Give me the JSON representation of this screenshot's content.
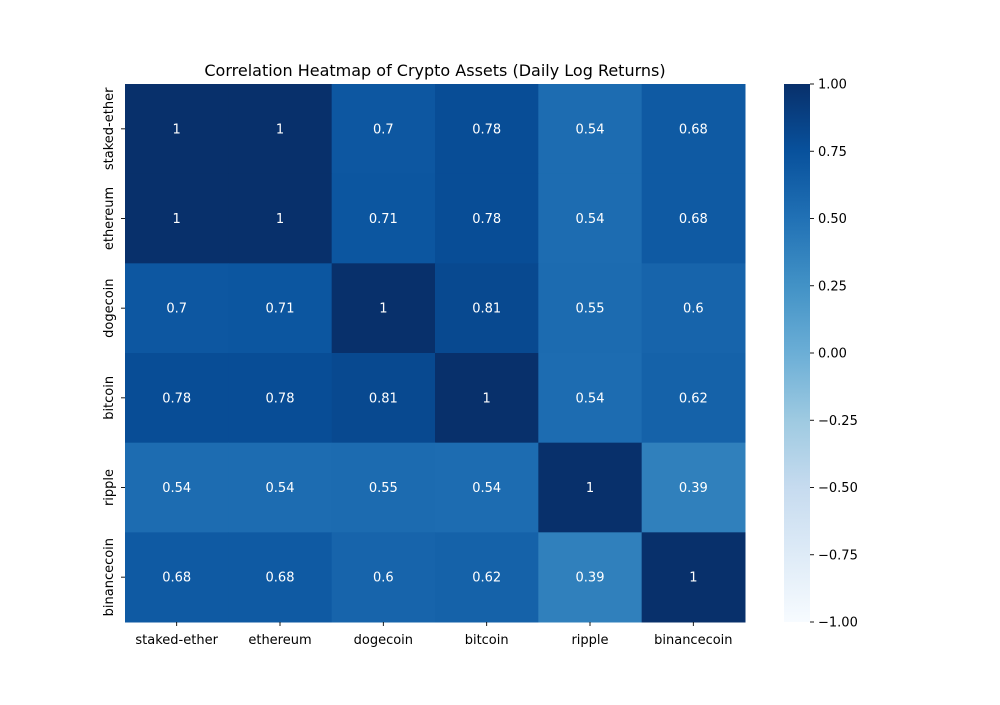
{
  "chart_data": {
    "type": "heatmap",
    "title": "Correlation Heatmap of Crypto Assets (Daily Log Returns)",
    "xlabel": "",
    "ylabel": "",
    "x_categories": [
      "staked-ether",
      "ethereum",
      "dogecoin",
      "bitcoin",
      "ripple",
      "binancecoin"
    ],
    "y_categories": [
      "staked-ether",
      "ethereum",
      "dogecoin",
      "bitcoin",
      "ripple",
      "binancecoin"
    ],
    "values": [
      [
        1,
        1,
        0.7,
        0.78,
        0.54,
        0.68
      ],
      [
        1,
        1,
        0.71,
        0.78,
        0.54,
        0.68
      ],
      [
        0.7,
        0.71,
        1,
        0.81,
        0.55,
        0.6
      ],
      [
        0.78,
        0.78,
        0.81,
        1,
        0.54,
        0.62
      ],
      [
        0.54,
        0.54,
        0.55,
        0.54,
        1,
        0.39
      ],
      [
        0.68,
        0.68,
        0.6,
        0.62,
        0.39,
        1
      ]
    ],
    "value_labels": [
      [
        "1",
        "1",
        "0.7",
        "0.78",
        "0.54",
        "0.68"
      ],
      [
        "1",
        "1",
        "0.71",
        "0.78",
        "0.54",
        "0.68"
      ],
      [
        "0.7",
        "0.71",
        "1",
        "0.81",
        "0.55",
        "0.6"
      ],
      [
        "0.78",
        "0.78",
        "0.81",
        "1",
        "0.54",
        "0.62"
      ],
      [
        "0.54",
        "0.54",
        "0.55",
        "0.54",
        "1",
        "0.39"
      ],
      [
        "0.68",
        "0.68",
        "0.6",
        "0.62",
        "0.39",
        "1"
      ]
    ],
    "colorscale": "Blues",
    "vmin": -1,
    "vmax": 1,
    "colorbar_ticks": [
      1.0,
      0.75,
      0.5,
      0.25,
      0.0,
      -0.25,
      -0.5,
      -0.75,
      -1.0
    ],
    "colorbar_tick_labels": [
      "1.00",
      "0.75",
      "0.50",
      "0.25",
      "0.00",
      "−0.25",
      "−0.50",
      "−0.75",
      "−1.00"
    ],
    "colorbar_position": "right",
    "grid": false
  }
}
